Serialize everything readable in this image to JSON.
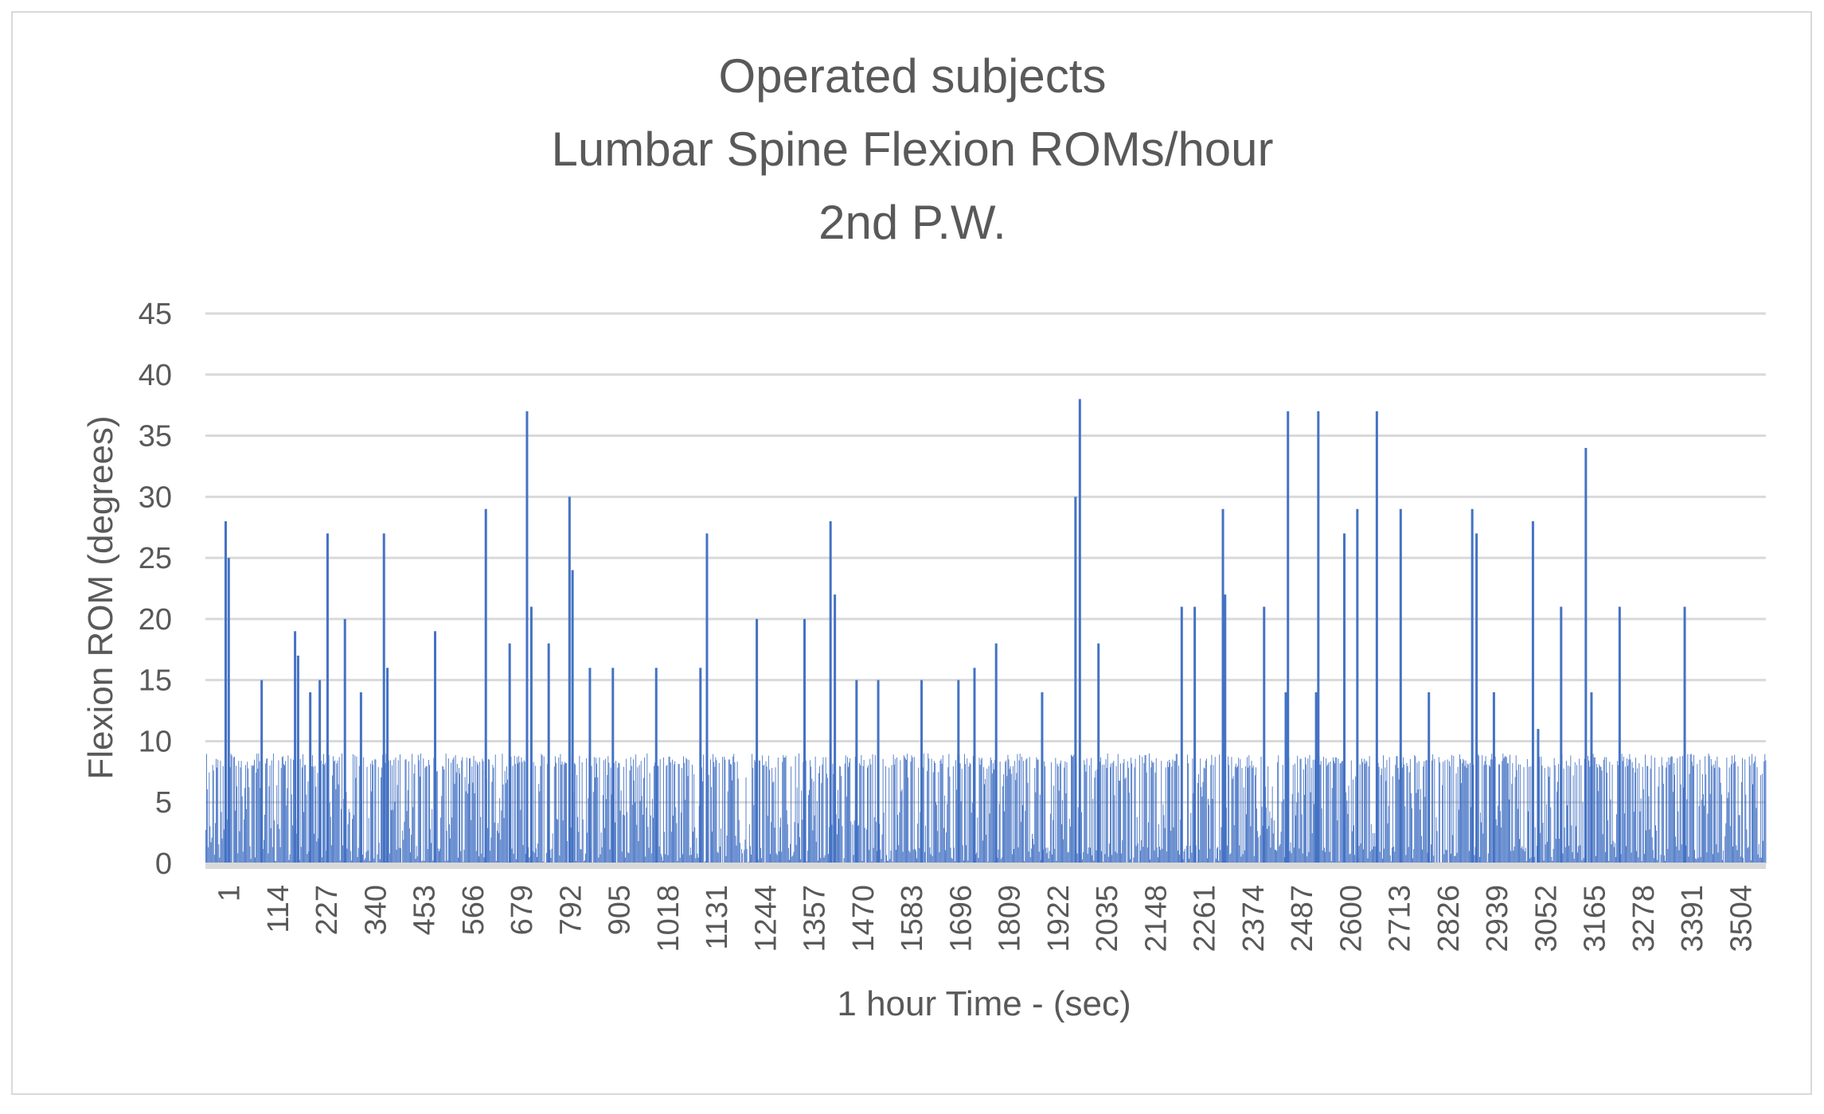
{
  "chart_data": {
    "type": "bar",
    "title_lines": [
      "Operated subjects",
      "Lumbar Spine Flexion ROMs/hour",
      "2nd P.W."
    ],
    "xlabel": "1 hour Time - (sec)",
    "ylabel": "Flexion ROM (degrees)",
    "ylim": [
      0,
      45
    ],
    "y_ticks": [
      0,
      5,
      10,
      15,
      20,
      25,
      30,
      35,
      40,
      45
    ],
    "x_tick_labels": [
      "1",
      "114",
      "227",
      "340",
      "453",
      "566",
      "679",
      "792",
      "905",
      "1018",
      "1131",
      "1244",
      "1357",
      "1470",
      "1583",
      "1696",
      "1809",
      "1922",
      "2035",
      "2148",
      "2261",
      "2374",
      "2487",
      "2600",
      "2713",
      "2826",
      "2939",
      "3052",
      "3165",
      "3278",
      "3391",
      "3504"
    ],
    "x_range": [
      1,
      3600
    ],
    "grid": "horizontal",
    "legend": "none",
    "series": [
      {
        "color": "#4472c4",
        "baseline_noise": {
          "low": 0,
          "high": 9
        },
        "peaks": [
          {
            "x": 45,
            "y": 28
          },
          {
            "x": 52,
            "y": 25
          },
          {
            "x": 128,
            "y": 15
          },
          {
            "x": 205,
            "y": 19
          },
          {
            "x": 212,
            "y": 17
          },
          {
            "x": 240,
            "y": 14
          },
          {
            "x": 262,
            "y": 15
          },
          {
            "x": 280,
            "y": 27
          },
          {
            "x": 320,
            "y": 20
          },
          {
            "x": 357,
            "y": 14
          },
          {
            "x": 410,
            "y": 27
          },
          {
            "x": 418,
            "y": 16
          },
          {
            "x": 528,
            "y": 19
          },
          {
            "x": 645,
            "y": 29
          },
          {
            "x": 700,
            "y": 18
          },
          {
            "x": 740,
            "y": 37
          },
          {
            "x": 750,
            "y": 21
          },
          {
            "x": 790,
            "y": 18
          },
          {
            "x": 838,
            "y": 30
          },
          {
            "x": 845,
            "y": 24
          },
          {
            "x": 885,
            "y": 16
          },
          {
            "x": 938,
            "y": 16
          },
          {
            "x": 1038,
            "y": 16
          },
          {
            "x": 1140,
            "y": 16
          },
          {
            "x": 1155,
            "y": 27
          },
          {
            "x": 1270,
            "y": 20
          },
          {
            "x": 1380,
            "y": 20
          },
          {
            "x": 1440,
            "y": 28
          },
          {
            "x": 1450,
            "y": 22
          },
          {
            "x": 1500,
            "y": 15
          },
          {
            "x": 1550,
            "y": 15
          },
          {
            "x": 1650,
            "y": 15
          },
          {
            "x": 1735,
            "y": 15
          },
          {
            "x": 1772,
            "y": 16
          },
          {
            "x": 1822,
            "y": 18
          },
          {
            "x": 1928,
            "y": 14
          },
          {
            "x": 2005,
            "y": 30
          },
          {
            "x": 2015,
            "y": 38
          },
          {
            "x": 2058,
            "y": 18
          },
          {
            "x": 2250,
            "y": 21
          },
          {
            "x": 2280,
            "y": 21
          },
          {
            "x": 2345,
            "y": 29
          },
          {
            "x": 2350,
            "y": 22
          },
          {
            "x": 2440,
            "y": 21
          },
          {
            "x": 2490,
            "y": 14
          },
          {
            "x": 2495,
            "y": 37
          },
          {
            "x": 2560,
            "y": 14
          },
          {
            "x": 2565,
            "y": 37
          },
          {
            "x": 2625,
            "y": 27
          },
          {
            "x": 2655,
            "y": 29
          },
          {
            "x": 2700,
            "y": 37
          },
          {
            "x": 2755,
            "y": 29
          },
          {
            "x": 2820,
            "y": 14
          },
          {
            "x": 2920,
            "y": 29
          },
          {
            "x": 2930,
            "y": 27
          },
          {
            "x": 2970,
            "y": 14
          },
          {
            "x": 3060,
            "y": 28
          },
          {
            "x": 3072,
            "y": 11
          },
          {
            "x": 3125,
            "y": 21
          },
          {
            "x": 3182,
            "y": 34
          },
          {
            "x": 3195,
            "y": 14
          },
          {
            "x": 3260,
            "y": 21
          },
          {
            "x": 3410,
            "y": 21
          }
        ]
      }
    ]
  }
}
